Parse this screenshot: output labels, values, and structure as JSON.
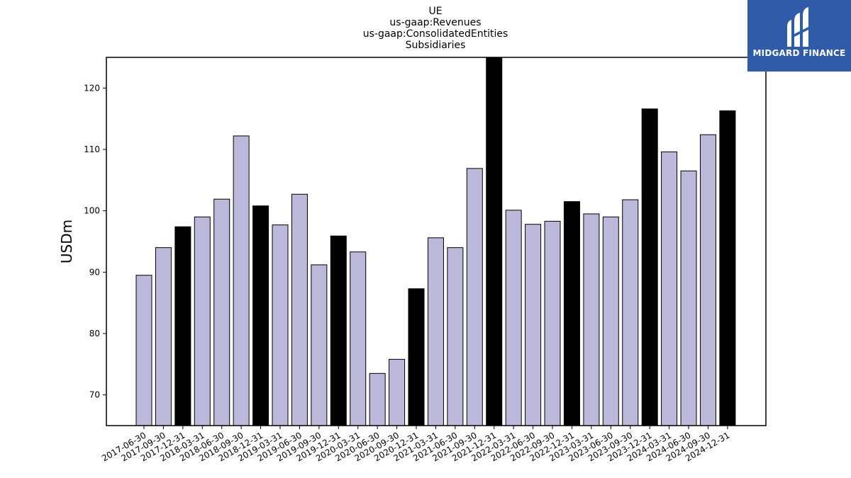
{
  "chart_data": {
    "type": "bar",
    "title_lines": [
      "UE",
      "us-gaap:Revenues",
      "us-gaap:ConsolidatedEntities",
      "Subsidiaries"
    ],
    "ylabel": "USDm",
    "xlabel": "",
    "ylim": [
      65,
      125
    ],
    "yticks": [
      70,
      80,
      90,
      100,
      110,
      120
    ],
    "grid": false,
    "categories": [
      "2017-06-30",
      "2017-09-30",
      "2017-12-31",
      "2018-03-31",
      "2018-06-30",
      "2018-09-30",
      "2018-12-31",
      "2019-03-31",
      "2019-06-30",
      "2019-09-30",
      "2019-12-31",
      "2020-03-31",
      "2020-06-30",
      "2020-09-30",
      "2020-12-31",
      "2021-03-31",
      "2021-06-30",
      "2021-09-30",
      "2021-12-31",
      "2022-03-31",
      "2022-06-30",
      "2022-09-30",
      "2022-12-31",
      "2023-03-31",
      "2023-06-30",
      "2023-09-30",
      "2023-12-31",
      "2024-03-31",
      "2024-06-30",
      "2024-09-30",
      "2024-12-31"
    ],
    "values": [
      89.5,
      94.0,
      97.4,
      99.0,
      101.9,
      112.2,
      100.8,
      97.7,
      102.7,
      91.2,
      95.9,
      93.3,
      73.5,
      75.8,
      87.3,
      95.6,
      94.0,
      106.9,
      125.5,
      100.1,
      97.8,
      98.3,
      101.5,
      99.5,
      99.0,
      101.8,
      116.6,
      109.6,
      106.5,
      112.4,
      116.3
    ],
    "highlight": [
      false,
      false,
      true,
      false,
      false,
      false,
      true,
      false,
      false,
      false,
      true,
      false,
      false,
      false,
      true,
      false,
      false,
      false,
      true,
      false,
      false,
      false,
      true,
      false,
      false,
      false,
      true,
      false,
      false,
      false,
      true
    ],
    "colors": {
      "normal": "#bcb8d9",
      "highlight": "#000000",
      "edge": "#000000"
    }
  },
  "logo": {
    "text": "MIDGARD FINANCE",
    "background": "#2f5ba8"
  }
}
